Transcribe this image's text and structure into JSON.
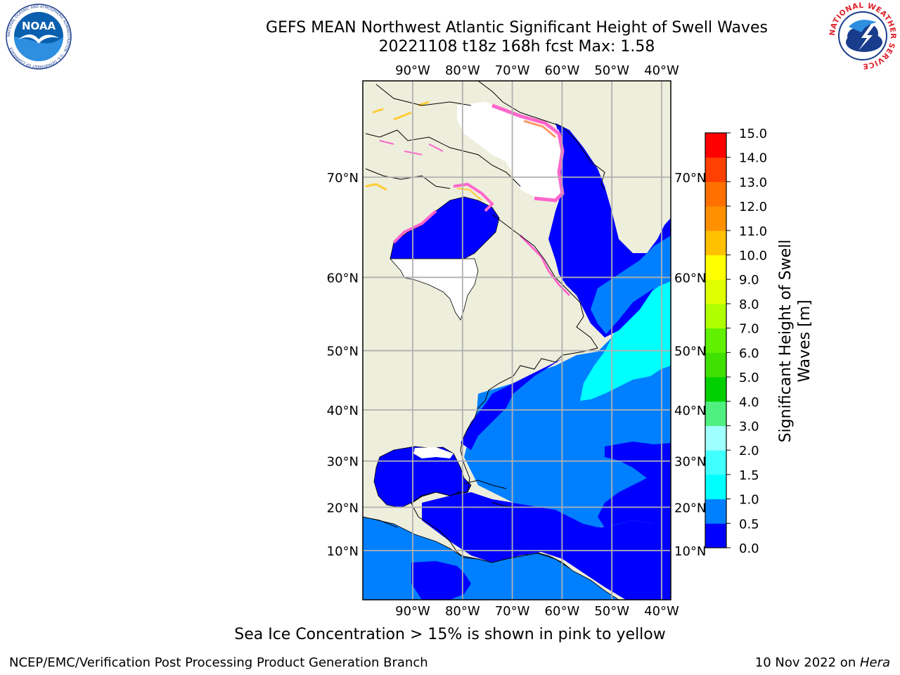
{
  "title": {
    "line1": "GEFS MEAN Northwest Atlantic Significant Height of Swell Waves",
    "line2": "20221108 t18z 168h fcst   Max: 1.58"
  },
  "map": {
    "lon_labels": [
      "90°W",
      "80°W",
      "70°W",
      "60°W",
      "50°W",
      "40°W"
    ],
    "lon_values": [
      -90,
      -80,
      -70,
      -60,
      -50,
      -40
    ],
    "lat_labels": [
      "10°N",
      "20°N",
      "30°N",
      "40°N",
      "50°N",
      "60°N",
      "70°N"
    ],
    "lat_values": [
      10,
      20,
      30,
      40,
      50,
      60,
      70
    ],
    "land_color": "#eeeedc",
    "ice_colors": [
      "#ff66cc",
      "#ff9966",
      "#ffcc33"
    ],
    "ocean_colors": {
      "0.0-0.5": "#0000ff",
      "0.5-1.0": "#0080ff",
      "1.0-1.5": "#00ffff"
    }
  },
  "colorbar": {
    "label_line1": "Significant Height of Swell",
    "label_line2": "Waves [m]",
    "ticks": [
      "0.0",
      "0.5",
      "1.0",
      "1.5",
      "2.0",
      "3.0",
      "4.0",
      "5.0",
      "6.0",
      "7.0",
      "8.0",
      "9.0",
      "10.0",
      "11.0",
      "12.0",
      "13.0",
      "14.0",
      "15.0"
    ],
    "colors": [
      "#0000ff",
      "#0080ff",
      "#00ffff",
      "#40ffff",
      "#a0ffff",
      "#50f080",
      "#00d000",
      "#40e000",
      "#60f000",
      "#b0ff00",
      "#e0ff00",
      "#ffff00",
      "#ffc000",
      "#ff9000",
      "#ff7000",
      "#ff4000",
      "#ff0000"
    ]
  },
  "notes": {
    "ice": "Sea Ice Concentration > 15% is shown in pink to yellow",
    "footer_left": "NCEP/EMC/Verification Post Processing Product Generation Branch",
    "footer_date": "10 Nov 2022 on ",
    "footer_host": "Hera"
  },
  "logos": {
    "noaa": "NOAA",
    "noaa_ring": "NATIONAL OCEANIC AND ATMOSPHERIC ADMINISTRATION · U.S. DEPARTMENT OF COMMERCE",
    "nws_ring": "NATIONAL WEATHER SERVICE"
  }
}
